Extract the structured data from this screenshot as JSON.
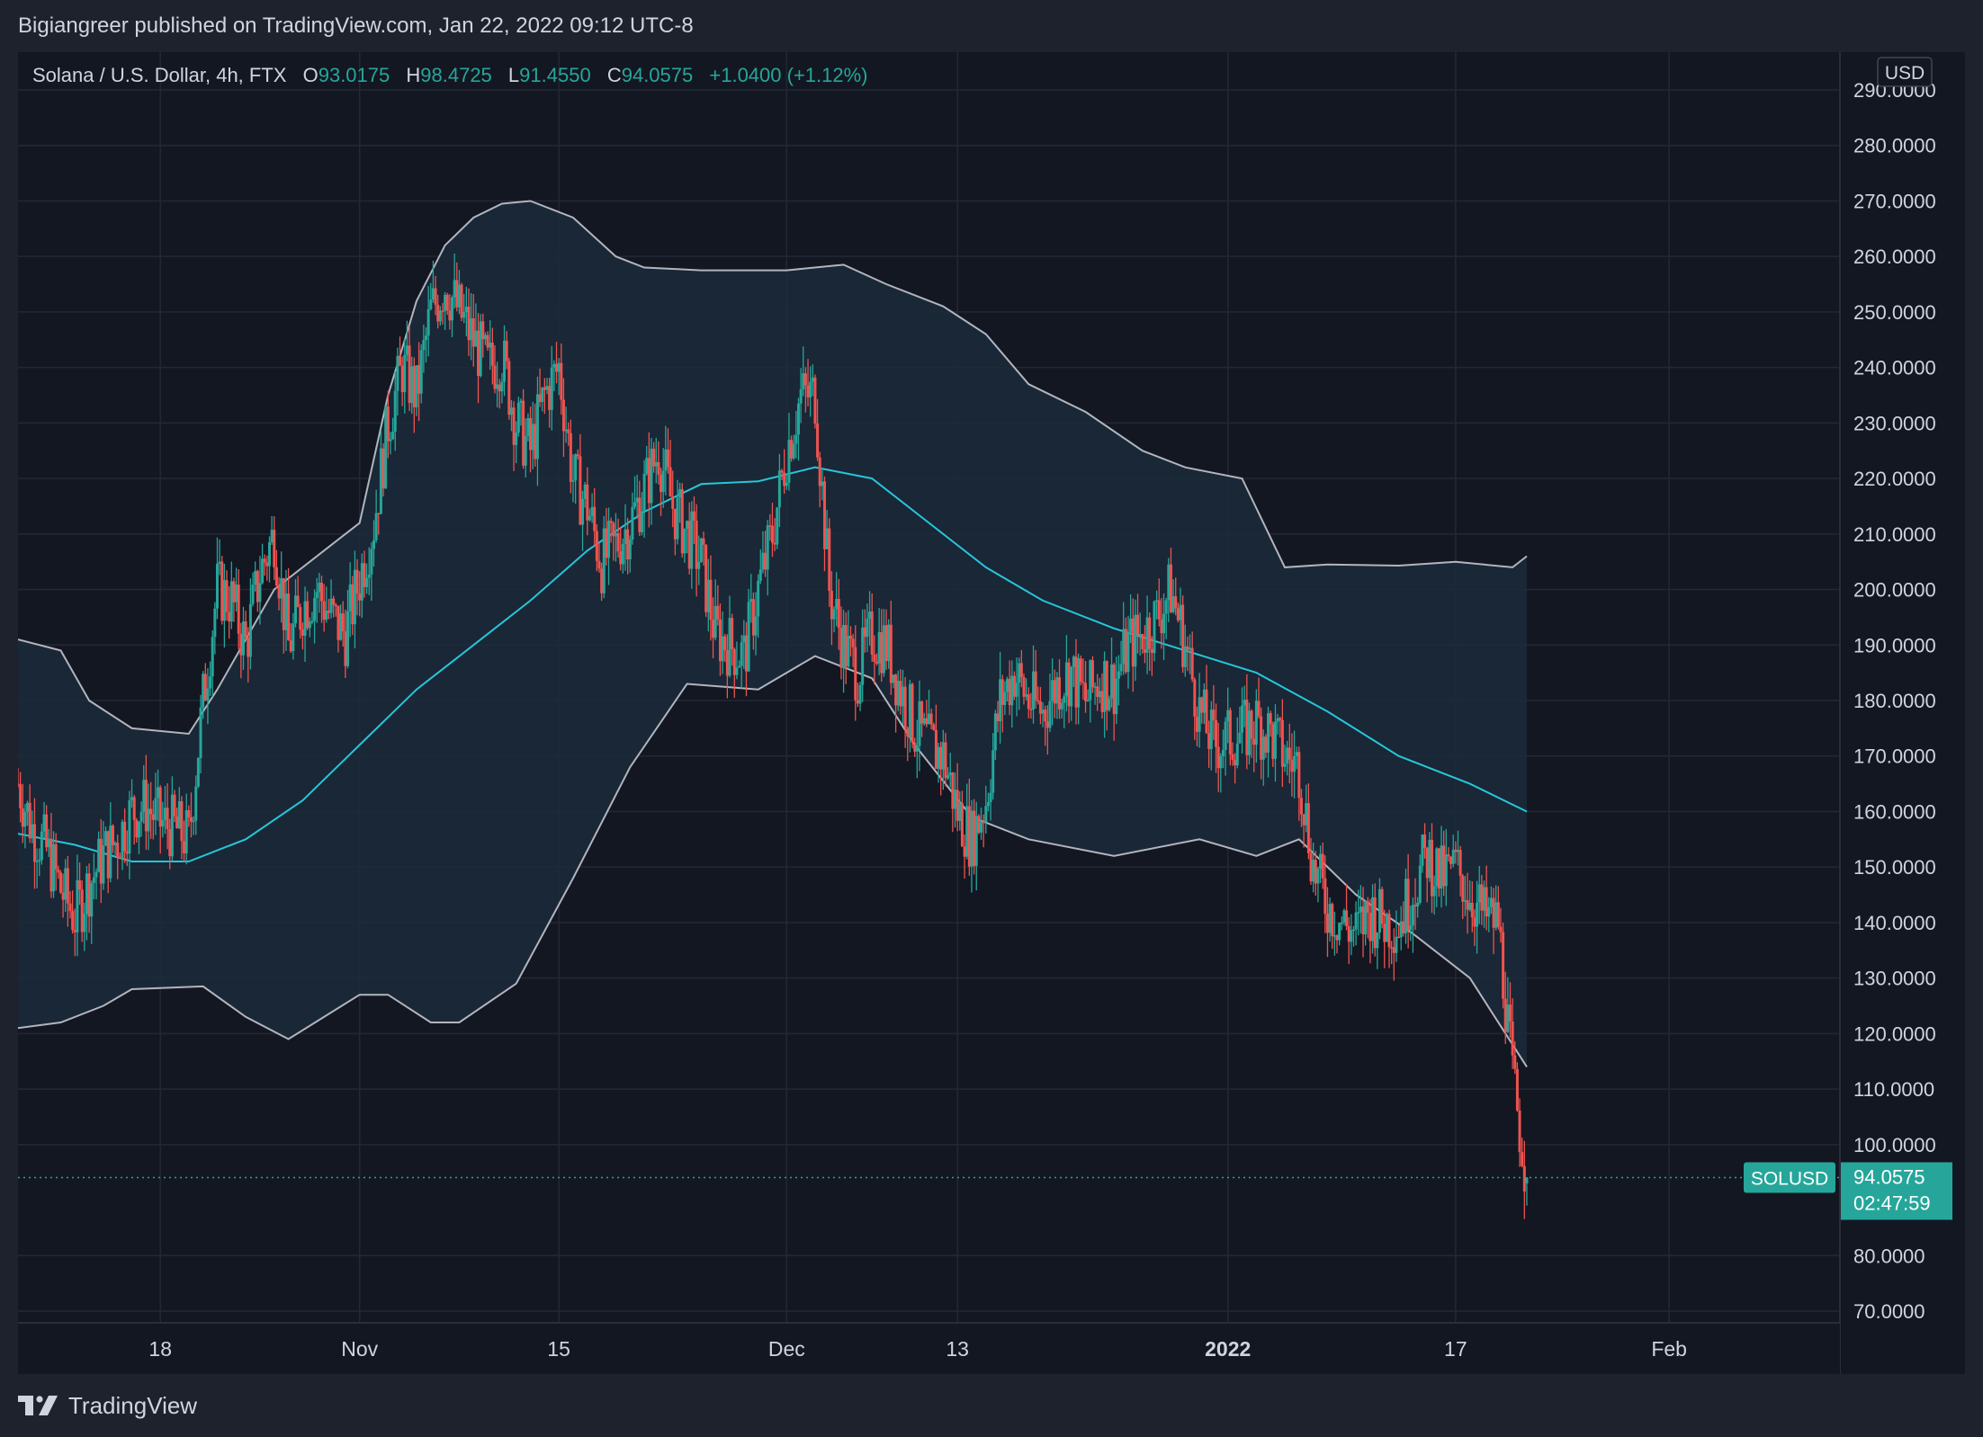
{
  "header": {
    "publish_line": "Bigiangreer published on TradingView.com, Jan 22, 2022 09:12 UTC-8"
  },
  "legend": {
    "symbol_desc": "Solana / U.S. Dollar, 4h, FTX",
    "o_label": "O",
    "o_value": "93.0175",
    "h_label": "H",
    "h_value": "98.4725",
    "l_label": "L",
    "l_value": "91.4550",
    "c_label": "C",
    "c_value": "94.0575",
    "change": "+1.0400 (+1.12%)"
  },
  "currency_badge": "USD",
  "price_label": {
    "symbol": "SOLUSD",
    "price": "94.0575",
    "countdown": "02:47:59"
  },
  "footer": {
    "brand": "TradingView"
  },
  "colors": {
    "background": "#131722",
    "frame": "#1e222d",
    "up": "#26a69a",
    "down": "#ef5350",
    "basis": "#26c6da",
    "band_line": "#b2b5be",
    "band_fill": "#1c2a3a",
    "grid": "#232834"
  },
  "chart_data": {
    "type": "candlestick",
    "title": "",
    "ylabel": "",
    "ylim": [
      70,
      290
    ],
    "y_ticks": [
      {
        "value": 290,
        "label": "290.0000"
      },
      {
        "value": 280,
        "label": "280.0000"
      },
      {
        "value": 270,
        "label": "270.0000"
      },
      {
        "value": 260,
        "label": "260.0000"
      },
      {
        "value": 250,
        "label": "250.0000"
      },
      {
        "value": 240,
        "label": "240.0000"
      },
      {
        "value": 230,
        "label": "230.0000"
      },
      {
        "value": 220,
        "label": "220.0000"
      },
      {
        "value": 210,
        "label": "210.0000"
      },
      {
        "value": 200,
        "label": "200.0000"
      },
      {
        "value": 190,
        "label": "190.0000"
      },
      {
        "value": 180,
        "label": "180.0000"
      },
      {
        "value": 170,
        "label": "170.0000"
      },
      {
        "value": 160,
        "label": "160.0000"
      },
      {
        "value": 150,
        "label": "150.0000"
      },
      {
        "value": 140,
        "label": "140.0000"
      },
      {
        "value": 130,
        "label": "130.0000"
      },
      {
        "value": 120,
        "label": "120.0000"
      },
      {
        "value": 110,
        "label": "110.0000"
      },
      {
        "value": 100,
        "label": "100.0000"
      },
      {
        "value": 80,
        "label": "80.0000"
      },
      {
        "value": 70,
        "label": "70.0000"
      }
    ],
    "x_ticks": [
      {
        "date": "2021-10-18",
        "label": "18",
        "bold": false
      },
      {
        "date": "2021-11-01",
        "label": "Nov",
        "bold": false
      },
      {
        "date": "2021-11-15",
        "label": "15",
        "bold": false
      },
      {
        "date": "2021-12-01",
        "label": "Dec",
        "bold": false
      },
      {
        "date": "2021-12-13",
        "label": "13",
        "bold": false
      },
      {
        "date": "2022-01-01",
        "label": "2022",
        "bold": true
      },
      {
        "date": "2022-01-17",
        "label": "17",
        "bold": false
      },
      {
        "date": "2022-02-01",
        "label": "Feb",
        "bold": false
      }
    ],
    "x_range": [
      "2021-10-08",
      "2022-02-13"
    ],
    "last_price": 94.0575,
    "series": [
      {
        "name": "close",
        "kind": "price",
        "points": [
          [
            "2021-10-08",
            165
          ],
          [
            "2021-10-09",
            157
          ],
          [
            "2021-10-10",
            153
          ],
          [
            "2021-10-11",
            146
          ],
          [
            "2021-10-12",
            141
          ],
          [
            "2021-10-13",
            147
          ],
          [
            "2021-10-14",
            152
          ],
          [
            "2021-10-15",
            155
          ],
          [
            "2021-10-16",
            160
          ],
          [
            "2021-10-17",
            161
          ],
          [
            "2021-10-18",
            158
          ],
          [
            "2021-10-19",
            157
          ],
          [
            "2021-10-20",
            155
          ],
          [
            "2021-10-21",
            180
          ],
          [
            "2021-10-22",
            200
          ],
          [
            "2021-10-23",
            198
          ],
          [
            "2021-10-24",
            190
          ],
          [
            "2021-10-25",
            203
          ],
          [
            "2021-10-26",
            210
          ],
          [
            "2021-10-27",
            190
          ],
          [
            "2021-10-28",
            197
          ],
          [
            "2021-10-29",
            200
          ],
          [
            "2021-10-30",
            195
          ],
          [
            "2021-10-31",
            192
          ],
          [
            "2021-11-01",
            202
          ],
          [
            "2021-11-02",
            212
          ],
          [
            "2021-11-03",
            230
          ],
          [
            "2021-11-04",
            240
          ],
          [
            "2021-11-05",
            235
          ],
          [
            "2021-11-06",
            250
          ],
          [
            "2021-11-07",
            255
          ],
          [
            "2021-11-08",
            250
          ],
          [
            "2021-11-09",
            245
          ],
          [
            "2021-11-10",
            240
          ],
          [
            "2021-11-11",
            242
          ],
          [
            "2021-11-12",
            230
          ],
          [
            "2021-11-13",
            225
          ],
          [
            "2021-11-14",
            235
          ],
          [
            "2021-11-15",
            240
          ],
          [
            "2021-11-16",
            220
          ],
          [
            "2021-11-17",
            215
          ],
          [
            "2021-11-18",
            205
          ],
          [
            "2021-11-19",
            208
          ],
          [
            "2021-11-20",
            212
          ],
          [
            "2021-11-21",
            218
          ],
          [
            "2021-11-22",
            225
          ],
          [
            "2021-11-23",
            215
          ],
          [
            "2021-11-24",
            210
          ],
          [
            "2021-11-25",
            205
          ],
          [
            "2021-11-26",
            192
          ],
          [
            "2021-11-27",
            190
          ],
          [
            "2021-11-28",
            188
          ],
          [
            "2021-11-29",
            200
          ],
          [
            "2021-11-30",
            210
          ],
          [
            "2021-12-01",
            225
          ],
          [
            "2021-12-02",
            235
          ],
          [
            "2021-12-03",
            235
          ],
          [
            "2021-12-04",
            200
          ],
          [
            "2021-12-05",
            190
          ],
          [
            "2021-12-06",
            185
          ],
          [
            "2021-12-07",
            192
          ],
          [
            "2021-12-08",
            190
          ],
          [
            "2021-12-09",
            182
          ],
          [
            "2021-12-10",
            175
          ],
          [
            "2021-12-11",
            172
          ],
          [
            "2021-12-12",
            170
          ],
          [
            "2021-12-13",
            160
          ],
          [
            "2021-12-14",
            155
          ],
          [
            "2021-12-15",
            162
          ],
          [
            "2021-12-16",
            180
          ],
          [
            "2021-12-17",
            185
          ],
          [
            "2021-12-18",
            180
          ],
          [
            "2021-12-19",
            178
          ],
          [
            "2021-12-20",
            183
          ],
          [
            "2021-12-21",
            185
          ],
          [
            "2021-12-22",
            180
          ],
          [
            "2021-12-23",
            184
          ],
          [
            "2021-12-24",
            183
          ],
          [
            "2021-12-25",
            190
          ],
          [
            "2021-12-26",
            192
          ],
          [
            "2021-12-27",
            195
          ],
          [
            "2021-12-28",
            200
          ],
          [
            "2021-12-29",
            190
          ],
          [
            "2021-12-30",
            178
          ],
          [
            "2021-12-31",
            172
          ],
          [
            "2022-01-01",
            173
          ],
          [
            "2022-01-02",
            174
          ],
          [
            "2022-01-03",
            176
          ],
          [
            "2022-01-04",
            174
          ],
          [
            "2022-01-05",
            170
          ],
          [
            "2022-01-06",
            168
          ],
          [
            "2022-01-07",
            150
          ],
          [
            "2022-01-08",
            143
          ],
          [
            "2022-01-09",
            140
          ],
          [
            "2022-01-10",
            138
          ],
          [
            "2022-01-11",
            142
          ],
          [
            "2022-01-12",
            140
          ],
          [
            "2022-01-13",
            140
          ],
          [
            "2022-01-14",
            146
          ],
          [
            "2022-01-15",
            152
          ],
          [
            "2022-01-16",
            148
          ],
          [
            "2022-01-17",
            150
          ],
          [
            "2022-01-18",
            145
          ],
          [
            "2022-01-19",
            141
          ],
          [
            "2022-01-20",
            140
          ],
          [
            "2022-01-21",
            112
          ],
          [
            "2022-01-22",
            94.06
          ]
        ]
      },
      {
        "name": "Bollinger upper",
        "kind": "line",
        "points": [
          [
            "2021-10-08",
            191
          ],
          [
            "2021-10-11",
            189
          ],
          [
            "2021-10-13",
            180
          ],
          [
            "2021-10-16",
            175
          ],
          [
            "2021-10-20",
            174
          ],
          [
            "2021-10-22",
            182
          ],
          [
            "2021-10-26",
            200
          ],
          [
            "2021-10-30",
            208
          ],
          [
            "2021-11-01",
            212
          ],
          [
            "2021-11-03",
            235
          ],
          [
            "2021-11-05",
            252
          ],
          [
            "2021-11-07",
            262
          ],
          [
            "2021-11-09",
            267
          ],
          [
            "2021-11-11",
            269.5
          ],
          [
            "2021-11-13",
            270
          ],
          [
            "2021-11-16",
            267
          ],
          [
            "2021-11-19",
            260
          ],
          [
            "2021-11-21",
            258
          ],
          [
            "2021-11-25",
            257.5
          ],
          [
            "2021-12-01",
            257.5
          ],
          [
            "2021-12-05",
            258.5
          ],
          [
            "2021-12-08",
            255
          ],
          [
            "2021-12-12",
            251
          ],
          [
            "2021-12-15",
            246
          ],
          [
            "2021-12-18",
            237
          ],
          [
            "2021-12-22",
            232
          ],
          [
            "2021-12-26",
            225
          ],
          [
            "2021-12-29",
            222
          ],
          [
            "2022-01-02",
            220
          ],
          [
            "2022-01-05",
            204
          ],
          [
            "2022-01-08",
            204.5
          ],
          [
            "2022-01-13",
            204.3
          ],
          [
            "2022-01-17",
            205
          ],
          [
            "2022-01-21",
            204
          ],
          [
            "2022-01-22",
            206
          ]
        ]
      },
      {
        "name": "Bollinger basis",
        "kind": "line",
        "points": [
          [
            "2021-10-08",
            156
          ],
          [
            "2021-10-12",
            154
          ],
          [
            "2021-10-16",
            151
          ],
          [
            "2021-10-20",
            151
          ],
          [
            "2021-10-24",
            155
          ],
          [
            "2021-10-28",
            162
          ],
          [
            "2021-11-01",
            172
          ],
          [
            "2021-11-05",
            182
          ],
          [
            "2021-11-09",
            190
          ],
          [
            "2021-11-13",
            198
          ],
          [
            "2021-11-17",
            207
          ],
          [
            "2021-11-21",
            214
          ],
          [
            "2021-11-25",
            219
          ],
          [
            "2021-11-29",
            219.5
          ],
          [
            "2021-12-03",
            222
          ],
          [
            "2021-12-07",
            220
          ],
          [
            "2021-12-11",
            212
          ],
          [
            "2021-12-15",
            204
          ],
          [
            "2021-12-19",
            198
          ],
          [
            "2021-12-24",
            193
          ],
          [
            "2021-12-29",
            189
          ],
          [
            "2022-01-03",
            185
          ],
          [
            "2022-01-08",
            178
          ],
          [
            "2022-01-13",
            170
          ],
          [
            "2022-01-18",
            165
          ],
          [
            "2022-01-22",
            160
          ]
        ]
      },
      {
        "name": "Bollinger lower",
        "kind": "line",
        "points": [
          [
            "2021-10-08",
            121
          ],
          [
            "2021-10-11",
            122
          ],
          [
            "2021-10-14",
            125
          ],
          [
            "2021-10-16",
            128
          ],
          [
            "2021-10-21",
            128.5
          ],
          [
            "2021-10-24",
            123
          ],
          [
            "2021-10-27",
            119
          ],
          [
            "2021-11-01",
            127
          ],
          [
            "2021-11-03",
            127
          ],
          [
            "2021-11-06",
            122
          ],
          [
            "2021-11-08",
            122
          ],
          [
            "2021-11-12",
            129
          ],
          [
            "2021-11-16",
            148
          ],
          [
            "2021-11-20",
            168
          ],
          [
            "2021-11-24",
            183
          ],
          [
            "2021-11-29",
            182
          ],
          [
            "2021-12-03",
            188
          ],
          [
            "2021-12-07",
            184
          ],
          [
            "2021-12-10",
            172
          ],
          [
            "2021-12-14",
            159
          ],
          [
            "2021-12-18",
            155
          ],
          [
            "2021-12-24",
            152
          ],
          [
            "2021-12-30",
            155
          ],
          [
            "2022-01-03",
            152
          ],
          [
            "2022-01-06",
            155
          ],
          [
            "2022-01-10",
            145
          ],
          [
            "2022-01-14",
            138
          ],
          [
            "2022-01-18",
            130
          ],
          [
            "2022-01-22",
            114
          ]
        ]
      }
    ]
  }
}
